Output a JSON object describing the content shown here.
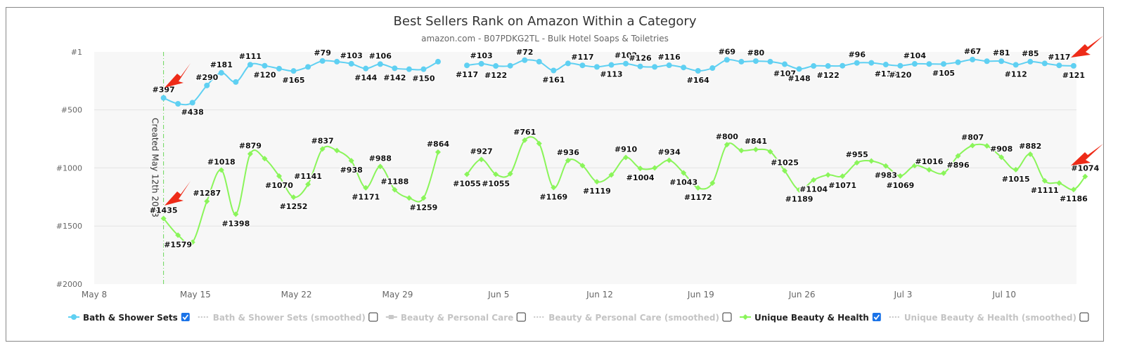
{
  "chart_data": {
    "type": "line",
    "title": "Best Sellers Rank on Amazon Within a Category",
    "subtitle": "amazon.com - B07PDKG2TL - Bulk Hotel Soaps & Toiletries",
    "xlabel": "",
    "ylabel": "",
    "y_inverted": true,
    "ylim": [
      1,
      2000
    ],
    "yticks": [
      {
        "value": 1,
        "label": "#1"
      },
      {
        "value": 500,
        "label": "#500"
      },
      {
        "value": 1000,
        "label": "#1000"
      },
      {
        "value": 1500,
        "label": "#1500"
      },
      {
        "value": 2000,
        "label": "#2000"
      }
    ],
    "x_range_days": [
      0,
      68
    ],
    "x_start_date": "May 8 2023",
    "xticks": [
      {
        "day": 0,
        "label": "May 8"
      },
      {
        "day": 7,
        "label": "May 15"
      },
      {
        "day": 14,
        "label": "May 22"
      },
      {
        "day": 21,
        "label": "May 29"
      },
      {
        "day": 28,
        "label": "Jun 5"
      },
      {
        "day": 35,
        "label": "Jun 12"
      },
      {
        "day": 42,
        "label": "Jun 19"
      },
      {
        "day": 49,
        "label": "Jun 26"
      },
      {
        "day": 56,
        "label": "Jul 3"
      },
      {
        "day": 63,
        "label": "Jul 10"
      }
    ],
    "annotation": {
      "day": 4.8,
      "text": "Created May 12th 2023"
    },
    "series": [
      {
        "name": "Bath & Shower Sets",
        "color": "#5fd0f2",
        "checked": true,
        "points": [
          {
            "x": 4.8,
            "y": 397,
            "label": "#397"
          },
          {
            "x": 5.8,
            "y": 448
          },
          {
            "x": 6.8,
            "y": 438,
            "label": "#438"
          },
          {
            "x": 7.8,
            "y": 290,
            "label": "#290"
          },
          {
            "x": 8.8,
            "y": 181,
            "label": "#181"
          },
          {
            "x": 9.8,
            "y": 260
          },
          {
            "x": 10.8,
            "y": 111,
            "label": "#111"
          },
          {
            "x": 11.8,
            "y": 120,
            "label": "#120"
          },
          {
            "x": 12.8,
            "y": 145
          },
          {
            "x": 13.8,
            "y": 165,
            "label": "#165"
          },
          {
            "x": 14.8,
            "y": 130
          },
          {
            "x": 15.8,
            "y": 79,
            "label": "#79"
          },
          {
            "x": 16.8,
            "y": 85
          },
          {
            "x": 17.8,
            "y": 103,
            "label": "#103"
          },
          {
            "x": 18.8,
            "y": 144,
            "label": "#144"
          },
          {
            "x": 19.8,
            "y": 106,
            "label": "#106"
          },
          {
            "x": 20.8,
            "y": 142,
            "label": "#142"
          },
          {
            "x": 21.8,
            "y": 150
          },
          {
            "x": 22.8,
            "y": 150,
            "label": "#150"
          },
          {
            "x": 23.8,
            "y": 85
          },
          {
            "x": 25.8,
            "y": 117,
            "label": "#117"
          },
          {
            "x": 26.8,
            "y": 103,
            "label": "#103"
          },
          {
            "x": 27.8,
            "y": 122,
            "label": "#122"
          },
          {
            "x": 28.8,
            "y": 120
          },
          {
            "x": 29.8,
            "y": 72,
            "label": "#72"
          },
          {
            "x": 30.8,
            "y": 85
          },
          {
            "x": 31.8,
            "y": 161,
            "label": "#161"
          },
          {
            "x": 32.8,
            "y": 100
          },
          {
            "x": 33.8,
            "y": 117,
            "label": "#117"
          },
          {
            "x": 34.8,
            "y": 130
          },
          {
            "x": 35.8,
            "y": 113,
            "label": "#113"
          },
          {
            "x": 36.8,
            "y": 102,
            "label": "#102"
          },
          {
            "x": 37.8,
            "y": 126,
            "label": "#126"
          },
          {
            "x": 38.8,
            "y": 130
          },
          {
            "x": 39.8,
            "y": 116,
            "label": "#116"
          },
          {
            "x": 40.8,
            "y": 135
          },
          {
            "x": 41.8,
            "y": 164,
            "label": "#164"
          },
          {
            "x": 42.8,
            "y": 140
          },
          {
            "x": 43.8,
            "y": 69,
            "label": "#69"
          },
          {
            "x": 44.8,
            "y": 85
          },
          {
            "x": 45.8,
            "y": 80,
            "label": "#80"
          },
          {
            "x": 46.8,
            "y": 85
          },
          {
            "x": 47.8,
            "y": 107,
            "label": "#107"
          },
          {
            "x": 48.8,
            "y": 148,
            "label": "#148"
          },
          {
            "x": 49.8,
            "y": 122
          },
          {
            "x": 50.8,
            "y": 122,
            "label": "#122"
          },
          {
            "x": 51.8,
            "y": 120
          },
          {
            "x": 52.8,
            "y": 96,
            "label": "#96"
          },
          {
            "x": 53.8,
            "y": 95
          },
          {
            "x": 54.8,
            "y": 110,
            "label": "#110"
          },
          {
            "x": 55.8,
            "y": 120,
            "label": "#120"
          },
          {
            "x": 56.8,
            "y": 104,
            "label": "#104"
          },
          {
            "x": 57.8,
            "y": 105
          },
          {
            "x": 58.8,
            "y": 105,
            "label": "#105"
          },
          {
            "x": 59.8,
            "y": 90
          },
          {
            "x": 60.8,
            "y": 67,
            "label": "#67"
          },
          {
            "x": 61.8,
            "y": 81
          },
          {
            "x": 62.8,
            "y": 81,
            "label": "#81"
          },
          {
            "x": 63.8,
            "y": 112,
            "label": "#112"
          },
          {
            "x": 64.8,
            "y": 85,
            "label": "#85"
          },
          {
            "x": 65.8,
            "y": 100
          },
          {
            "x": 66.8,
            "y": 117,
            "label": "#117"
          },
          {
            "x": 67.8,
            "y": 121,
            "label": "#121"
          }
        ]
      },
      {
        "name": "Bath & Shower Sets (smoothed)",
        "color": "#cfcfcf",
        "checked": false,
        "points": []
      },
      {
        "name": "Beauty & Personal Care",
        "color": "#cfcfcf",
        "checked": false,
        "points": []
      },
      {
        "name": "Beauty & Personal Care (smoothed)",
        "color": "#cfcfcf",
        "checked": false,
        "points": []
      },
      {
        "name": "Unique Beauty & Health",
        "color": "#8af55a",
        "checked": true,
        "points": [
          {
            "x": 4.8,
            "y": 1435,
            "label": "#1435"
          },
          {
            "x": 5.8,
            "y": 1579,
            "label": "#1579"
          },
          {
            "x": 6.8,
            "y": 1640
          },
          {
            "x": 7.8,
            "y": 1287,
            "label": "#1287"
          },
          {
            "x": 8.8,
            "y": 1018,
            "label": "#1018"
          },
          {
            "x": 9.8,
            "y": 1398,
            "label": "#1398"
          },
          {
            "x": 10.8,
            "y": 879,
            "label": "#879"
          },
          {
            "x": 11.8,
            "y": 920
          },
          {
            "x": 12.8,
            "y": 1070,
            "label": "#1070"
          },
          {
            "x": 13.8,
            "y": 1252,
            "label": "#1252"
          },
          {
            "x": 14.8,
            "y": 1141,
            "label": "#1141"
          },
          {
            "x": 15.8,
            "y": 837,
            "label": "#837"
          },
          {
            "x": 16.8,
            "y": 850
          },
          {
            "x": 17.8,
            "y": 938,
            "label": "#938"
          },
          {
            "x": 18.8,
            "y": 1171,
            "label": "#1171"
          },
          {
            "x": 19.8,
            "y": 988,
            "label": "#988"
          },
          {
            "x": 20.8,
            "y": 1188,
            "label": "#1188"
          },
          {
            "x": 21.8,
            "y": 1259
          },
          {
            "x": 22.8,
            "y": 1259,
            "label": "#1259"
          },
          {
            "x": 23.8,
            "y": 864,
            "label": "#864"
          },
          {
            "x": 25.8,
            "y": 1055,
            "label": "#1055"
          },
          {
            "x": 26.8,
            "y": 927,
            "label": "#927"
          },
          {
            "x": 27.8,
            "y": 1055,
            "label": "#1055"
          },
          {
            "x": 28.8,
            "y": 1050
          },
          {
            "x": 29.8,
            "y": 761,
            "label": "#761"
          },
          {
            "x": 30.8,
            "y": 790
          },
          {
            "x": 31.8,
            "y": 1169,
            "label": "#1169"
          },
          {
            "x": 32.8,
            "y": 936,
            "label": "#936"
          },
          {
            "x": 33.8,
            "y": 980
          },
          {
            "x": 34.8,
            "y": 1119,
            "label": "#1119"
          },
          {
            "x": 35.8,
            "y": 1060
          },
          {
            "x": 36.8,
            "y": 910,
            "label": "#910"
          },
          {
            "x": 37.8,
            "y": 1004,
            "label": "#1004"
          },
          {
            "x": 38.8,
            "y": 1000
          },
          {
            "x": 39.8,
            "y": 934,
            "label": "#934"
          },
          {
            "x": 40.8,
            "y": 1043,
            "label": "#1043"
          },
          {
            "x": 41.8,
            "y": 1172,
            "label": "#1172"
          },
          {
            "x": 42.8,
            "y": 1130
          },
          {
            "x": 43.8,
            "y": 800,
            "label": "#800"
          },
          {
            "x": 44.8,
            "y": 850
          },
          {
            "x": 45.8,
            "y": 841,
            "label": "#841"
          },
          {
            "x": 46.8,
            "y": 860
          },
          {
            "x": 47.8,
            "y": 1025,
            "label": "#1025"
          },
          {
            "x": 48.8,
            "y": 1189,
            "label": "#1189"
          },
          {
            "x": 49.8,
            "y": 1104,
            "label": "#1104"
          },
          {
            "x": 50.8,
            "y": 1060
          },
          {
            "x": 51.8,
            "y": 1071,
            "label": "#1071"
          },
          {
            "x": 52.8,
            "y": 955,
            "label": "#955"
          },
          {
            "x": 53.8,
            "y": 940
          },
          {
            "x": 54.8,
            "y": 983,
            "label": "#983"
          },
          {
            "x": 55.8,
            "y": 1069,
            "label": "#1069"
          },
          {
            "x": 56.8,
            "y": 980
          },
          {
            "x": 57.8,
            "y": 1016,
            "label": "#1016"
          },
          {
            "x": 58.8,
            "y": 1045
          },
          {
            "x": 59.8,
            "y": 896,
            "label": "#896"
          },
          {
            "x": 60.8,
            "y": 807,
            "label": "#807"
          },
          {
            "x": 61.8,
            "y": 810
          },
          {
            "x": 62.8,
            "y": 908,
            "label": "#908"
          },
          {
            "x": 63.8,
            "y": 1015,
            "label": "#1015"
          },
          {
            "x": 64.8,
            "y": 882,
            "label": "#882"
          },
          {
            "x": 65.8,
            "y": 1111,
            "label": "#1111"
          },
          {
            "x": 66.8,
            "y": 1130
          },
          {
            "x": 67.8,
            "y": 1186,
            "label": "#1186"
          },
          {
            "x": 68.6,
            "y": 1074,
            "label": "#1074"
          }
        ]
      },
      {
        "name": "Unique Beauty & Health (smoothed)",
        "color": "#cfcfcf",
        "checked": false,
        "points": []
      }
    ]
  },
  "colors": {
    "arrow": "#ee2b18",
    "plot_bg": "#f7f7f7",
    "grid": "#e4e4e4",
    "checkbox": "#1a73e8"
  }
}
